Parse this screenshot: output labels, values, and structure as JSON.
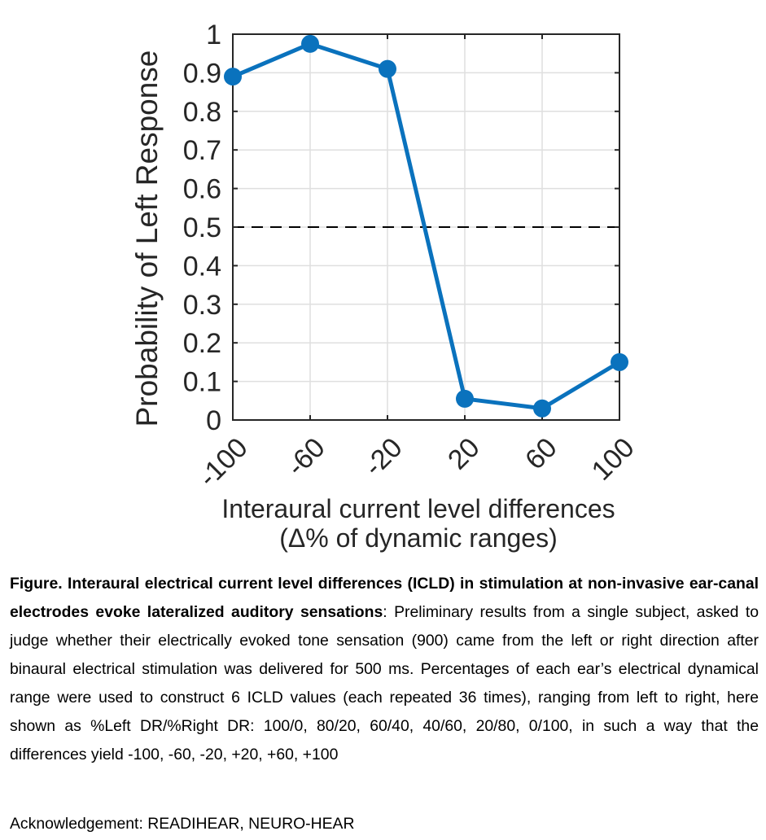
{
  "chart_data": {
    "type": "line",
    "xlabel_line1": "Interaural current level differences",
    "xlabel_line2": "(Δ% of dynamic ranges)",
    "ylabel": "Probability of Left Response",
    "x": [
      -100,
      -60,
      -20,
      20,
      60,
      100
    ],
    "x_tick_labels": [
      "-100",
      "-60",
      "-20",
      "20",
      "60",
      "100"
    ],
    "y_ticks": [
      0,
      0.1,
      0.2,
      0.3,
      0.4,
      0.5,
      0.6,
      0.7,
      0.8,
      0.9,
      1
    ],
    "y_tick_labels": [
      "0",
      "0.1",
      "0.2",
      "0.3",
      "0.4",
      "0.5",
      "0.6",
      "0.7",
      "0.8",
      "0.9",
      "1"
    ],
    "series": [
      {
        "values": [
          0.89,
          0.975,
          0.91,
          0.055,
          0.03,
          0.15
        ],
        "color": "#0a72bd"
      }
    ],
    "reference_line": {
      "y": 0.5,
      "style": "dashed",
      "color": "#000000"
    },
    "xlim": [
      -100,
      100
    ],
    "ylim": [
      0,
      1
    ],
    "grid": true
  },
  "caption": {
    "bold": "Figure. Interaural electrical current level differences (ICLD) in stimulation at non-invasive ear-canal electrodes evoke lateralized auditory sensations",
    "text": ": Preliminary results from a single subject, asked to judge whether their electrically evoked tone sensation (900) came from the left or right direction after binaural electrical stimulation was delivered for 500 ms. Percentages of each ear’s electrical dynamical range were used to construct 6 ICLD values (each repeated 36 times), ranging from left to right, here shown as %Left DR/%Right DR: 100/0, 80/20, 60/40, 40/60, 20/80, 0/100, in such a way that the differences yield -100, -60, -20, +20, +60, +100"
  },
  "acknowledgement": "Acknowledgement: READIHEAR, NEURO-HEAR"
}
